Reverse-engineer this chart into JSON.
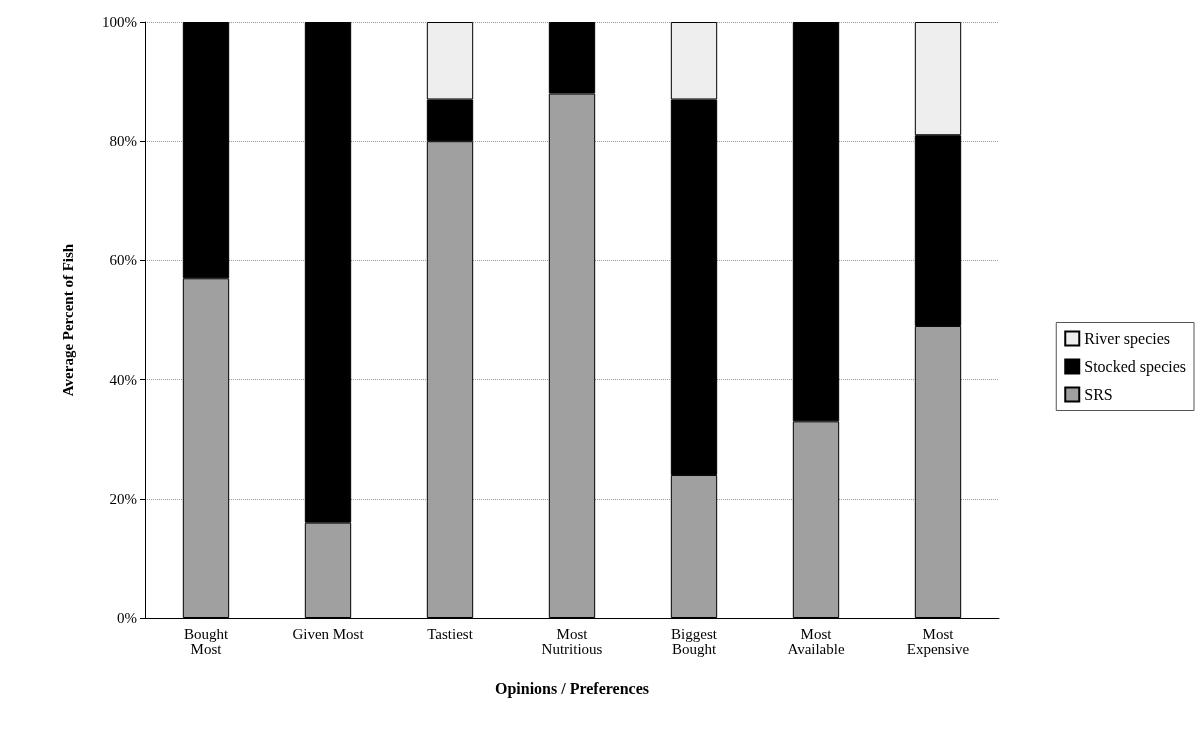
{
  "chart_data": {
    "type": "bar",
    "stacked": true,
    "xlabel": "Opinions / Preferences",
    "ylabel": "Average Percent of Fish",
    "categories": [
      "Bought\nMost",
      "Given Most",
      "Tastiest",
      "Most\nNutritious",
      "Biggest\nBought",
      "Most\nAvailable",
      "Most\nExpensive"
    ],
    "series": [
      {
        "name": "SRS",
        "color": "#a0a0a0",
        "values": [
          57,
          16,
          80,
          88,
          24,
          33,
          49
        ]
      },
      {
        "name": "Stocked species",
        "color": "#000000",
        "values": [
          43,
          84,
          7,
          12,
          63,
          67,
          32
        ]
      },
      {
        "name": "River species",
        "color": "#eeeeee",
        "values": [
          0,
          0,
          13,
          0,
          13,
          0,
          19
        ]
      }
    ],
    "ylim": [
      0,
      100
    ],
    "yticks": [
      {
        "value": 0,
        "label": "0%"
      },
      {
        "value": 20,
        "label": "20%"
      },
      {
        "value": 40,
        "label": "40%"
      },
      {
        "value": 60,
        "label": "60%"
      },
      {
        "value": 80,
        "label": "80%"
      },
      {
        "value": 100,
        "label": "100%"
      }
    ],
    "grid": "y",
    "legend": "right"
  }
}
